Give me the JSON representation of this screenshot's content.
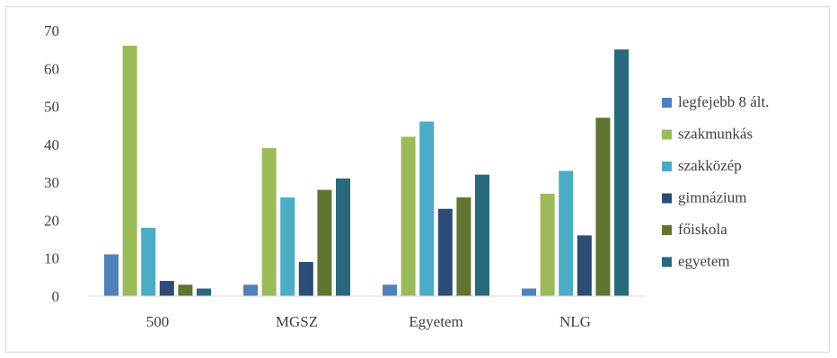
{
  "chart_data": {
    "type": "bar",
    "categories": [
      "500",
      "MGSZ",
      "Egyetem",
      "NLG"
    ],
    "series": [
      {
        "name": "legfejebb 8 ált.",
        "color": "#4f81bd",
        "values": [
          11,
          3,
          3,
          2
        ]
      },
      {
        "name": "szakmunkás",
        "color": "#9bbb59",
        "values": [
          66,
          39,
          42,
          27
        ]
      },
      {
        "name": "szakközép",
        "color": "#4bacc6",
        "values": [
          18,
          26,
          46,
          33
        ]
      },
      {
        "name": "gimnázium",
        "color": "#2c4d75",
        "values": [
          4,
          9,
          23,
          16
        ]
      },
      {
        "name": "főiskola",
        "color": "#5f7530",
        "values": [
          3,
          28,
          26,
          47
        ]
      },
      {
        "name": "egyetem",
        "color": "#276a7c",
        "values": [
          2,
          31,
          32,
          65
        ]
      }
    ],
    "ylim": [
      0,
      70
    ],
    "yticks": [
      0,
      10,
      20,
      30,
      40,
      50,
      60,
      70
    ],
    "grid": false,
    "legend": "right"
  }
}
